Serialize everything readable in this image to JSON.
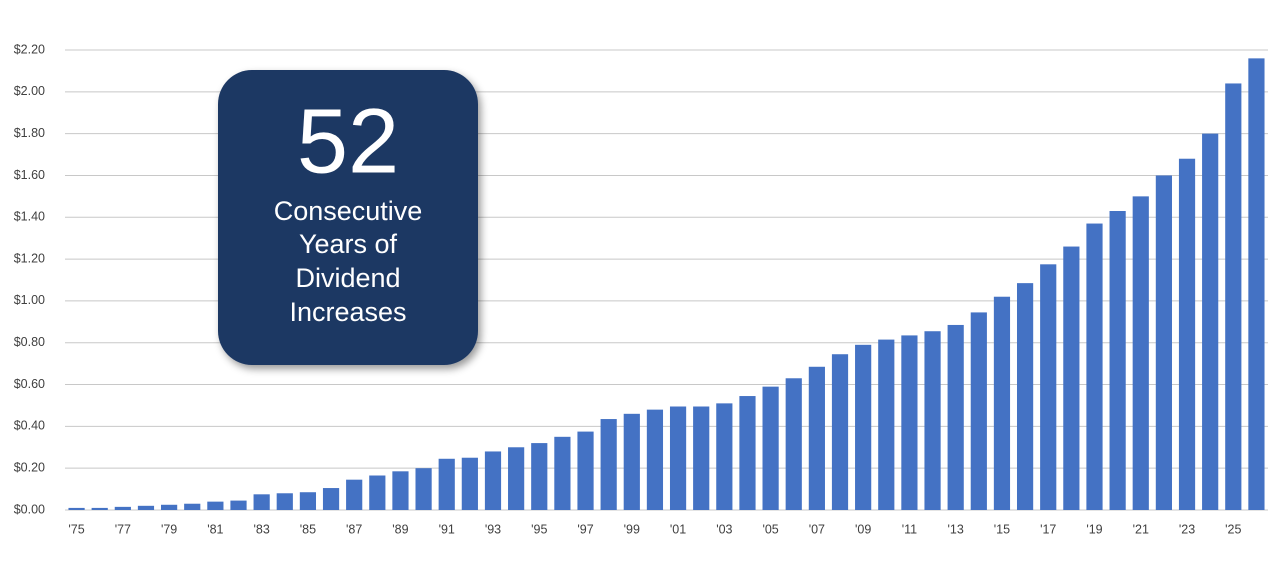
{
  "chart_data": {
    "type": "bar",
    "categories": [
      "'75",
      null,
      "'77",
      null,
      "'79",
      null,
      "'81",
      null,
      "'83",
      null,
      "'85",
      null,
      "'87",
      null,
      "'89",
      null,
      "'91",
      null,
      "'93",
      null,
      "'95",
      null,
      "'97",
      null,
      "'99",
      null,
      "'01",
      null,
      "'03",
      null,
      "'05",
      null,
      "'07",
      null,
      "'09",
      null,
      "'11",
      null,
      "'13",
      null,
      "'15",
      null,
      "'17",
      null,
      "'19",
      null,
      "'21",
      null,
      "'23",
      null,
      "'25",
      null
    ],
    "values": [
      0.01,
      0.01,
      0.015,
      0.02,
      0.025,
      0.03,
      0.04,
      0.045,
      0.075,
      0.08,
      0.085,
      0.105,
      0.145,
      0.165,
      0.185,
      0.2,
      0.245,
      0.25,
      0.28,
      0.3,
      0.32,
      0.35,
      0.375,
      0.435,
      0.46,
      0.48,
      0.495,
      0.495,
      0.51,
      0.545,
      0.59,
      0.63,
      0.685,
      0.745,
      0.79,
      0.815,
      0.835,
      0.855,
      0.885,
      0.945,
      1.02,
      1.085,
      1.175,
      1.26,
      1.37,
      1.43,
      1.5,
      1.6,
      1.68,
      1.8,
      2.04,
      2.16
    ],
    "color": "#4472c4",
    "ylim": [
      0,
      2.2
    ],
    "yticks": [
      {
        "value": 0,
        "label": "$0.00"
      },
      {
        "value": 0.2,
        "label": "$0.20"
      },
      {
        "value": 0.4,
        "label": "$0.40"
      },
      {
        "value": 0.6,
        "label": "$0.60"
      },
      {
        "value": 0.8,
        "label": "$0.80"
      },
      {
        "value": 1,
        "label": "$1.00"
      },
      {
        "value": 1.2,
        "label": "$1.20"
      },
      {
        "value": 1.4,
        "label": "$1.40"
      },
      {
        "value": 1.6,
        "label": "$1.60"
      },
      {
        "value": 1.8,
        "label": "$1.80"
      },
      {
        "value": 2,
        "label": "$2.00"
      },
      {
        "value": 2.2,
        "label": "$2.20"
      }
    ],
    "grid": true,
    "annotation": {
      "number": "52",
      "lines": [
        "Consecutive",
        "Years of",
        "Dividend",
        "Increases"
      ]
    }
  }
}
